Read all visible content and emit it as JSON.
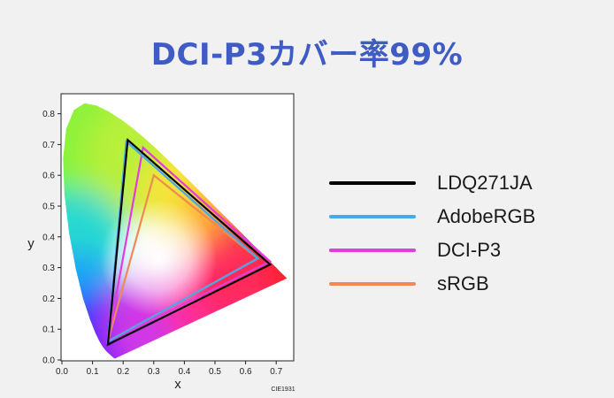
{
  "title": "DCI-P3カバー率99%",
  "chart_data": {
    "type": "scatter",
    "subtype": "cie1931-chromaticity-diagram",
    "xlabel": "x",
    "ylabel": "y",
    "xlim": [
      0,
      0.75
    ],
    "ylim": [
      0,
      0.85
    ],
    "x_ticks": [
      "0.0",
      "0.1",
      "0.2",
      "0.3",
      "0.4",
      "0.5",
      "0.6",
      "0.7"
    ],
    "y_ticks": [
      "0.0",
      "0.1",
      "0.2",
      "0.3",
      "0.4",
      "0.5",
      "0.6",
      "0.7",
      "0.8"
    ],
    "annotation": "CIE1931",
    "grid": false,
    "legend_position": "right",
    "series": [
      {
        "name": "LDQ271JA",
        "color": "#000000",
        "points": [
          [
            0.68,
            0.31
          ],
          [
            0.215,
            0.715
          ],
          [
            0.15,
            0.05
          ]
        ]
      },
      {
        "name": "AdobeRGB",
        "color": "#4aa8e8",
        "points": [
          [
            0.64,
            0.33
          ],
          [
            0.21,
            0.71
          ],
          [
            0.15,
            0.06
          ]
        ]
      },
      {
        "name": "DCI-P3",
        "color": "#e03ce0",
        "points": [
          [
            0.68,
            0.32
          ],
          [
            0.265,
            0.69
          ],
          [
            0.15,
            0.06
          ]
        ]
      },
      {
        "name": "sRGB",
        "color": "#ee8a55",
        "points": [
          [
            0.64,
            0.33
          ],
          [
            0.3,
            0.6
          ],
          [
            0.15,
            0.06
          ]
        ]
      }
    ],
    "spectral_locus": [
      [
        0.1741,
        0.005
      ],
      [
        0.1738,
        0.0049
      ],
      [
        0.1736,
        0.0049
      ],
      [
        0.1733,
        0.0048
      ],
      [
        0.173,
        0.0048
      ],
      [
        0.1726,
        0.0048
      ],
      [
        0.1721,
        0.0048
      ],
      [
        0.1714,
        0.0051
      ],
      [
        0.1703,
        0.0058
      ],
      [
        0.1689,
        0.0069
      ],
      [
        0.1669,
        0.0086
      ],
      [
        0.1644,
        0.0109
      ],
      [
        0.1611,
        0.0138
      ],
      [
        0.1566,
        0.0177
      ],
      [
        0.151,
        0.0227
      ],
      [
        0.144,
        0.0297
      ],
      [
        0.1355,
        0.0399
      ],
      [
        0.1241,
        0.0578
      ],
      [
        0.1096,
        0.0868
      ],
      [
        0.0913,
        0.1327
      ],
      [
        0.0687,
        0.2007
      ],
      [
        0.0454,
        0.295
      ],
      [
        0.0235,
        0.4127
      ],
      [
        0.0082,
        0.5384
      ],
      [
        0.0039,
        0.6548
      ],
      [
        0.0139,
        0.7502
      ],
      [
        0.0389,
        0.812
      ],
      [
        0.0743,
        0.8338
      ],
      [
        0.1142,
        0.8262
      ],
      [
        0.1547,
        0.8059
      ],
      [
        0.1929,
        0.7816
      ],
      [
        0.2296,
        0.7543
      ],
      [
        0.2658,
        0.7243
      ],
      [
        0.3016,
        0.6923
      ],
      [
        0.3373,
        0.6589
      ],
      [
        0.3731,
        0.6245
      ],
      [
        0.4087,
        0.5896
      ],
      [
        0.4441,
        0.5547
      ],
      [
        0.4788,
        0.5202
      ],
      [
        0.5125,
        0.4866
      ],
      [
        0.5448,
        0.4544
      ],
      [
        0.5752,
        0.4242
      ],
      [
        0.6029,
        0.3965
      ],
      [
        0.627,
        0.3725
      ],
      [
        0.6482,
        0.3514
      ],
      [
        0.6658,
        0.334
      ],
      [
        0.6801,
        0.3197
      ],
      [
        0.6915,
        0.3083
      ],
      [
        0.7006,
        0.2993
      ],
      [
        0.7079,
        0.292
      ],
      [
        0.714,
        0.2859
      ],
      [
        0.719,
        0.2809
      ],
      [
        0.723,
        0.277
      ],
      [
        0.726,
        0.274
      ],
      [
        0.7283,
        0.2717
      ],
      [
        0.73,
        0.27
      ],
      [
        0.7311,
        0.2689
      ],
      [
        0.732,
        0.268
      ],
      [
        0.7327,
        0.2673
      ],
      [
        0.7334,
        0.2666
      ],
      [
        0.734,
        0.266
      ],
      [
        0.7344,
        0.2656
      ],
      [
        0.7346,
        0.2654
      ],
      [
        0.7347,
        0.2653
      ]
    ]
  }
}
